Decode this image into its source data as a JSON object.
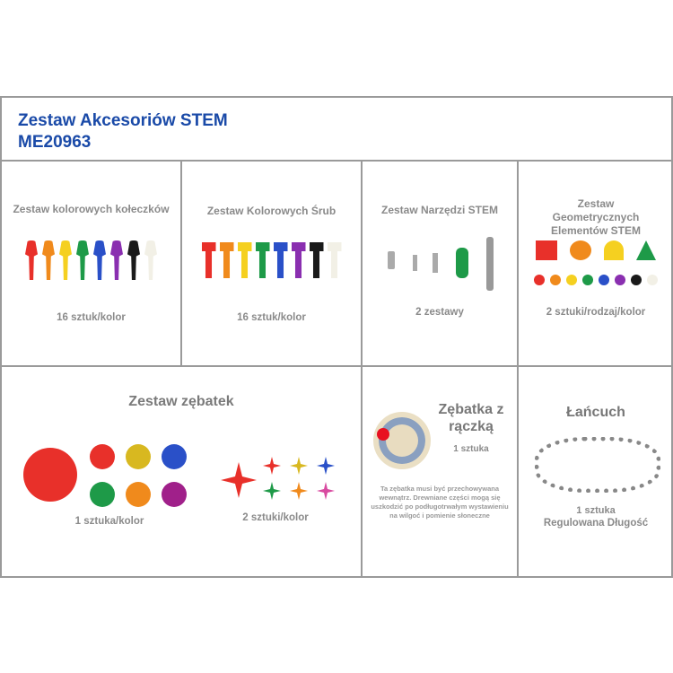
{
  "header": {
    "title": "Zestaw Akcesoriów STEM",
    "code": "ME20963"
  },
  "colors": {
    "title": "#1a4aa8",
    "text": "#8a8a8a",
    "items": [
      "#e8302a",
      "#f08a1c",
      "#f5d020",
      "#1e9a48",
      "#2a50c8",
      "#8a2fb0",
      "#1a1a1a",
      "#f2f0e6"
    ]
  },
  "cells": [
    {
      "title": "Zestaw kolorowych kołeczków",
      "caption": "16 sztuk/kolor"
    },
    {
      "title": "Zestaw Kolorowych Śrub",
      "caption": "16 sztuk/kolor"
    },
    {
      "title": "Zestaw Narzędzi STEM",
      "caption": "2 zestawy"
    },
    {
      "title": "Zestaw Geometrycznych Elementów STEM",
      "caption": "2 sztuki/rodzaj/kolor"
    },
    {
      "title": "Zestaw zębatek",
      "caption_left": "1 sztuka/kolor",
      "caption_right": "2 sztuki/kolor"
    },
    {
      "title": "Zębatka z rączką",
      "caption": "1 sztuka",
      "note": "Ta zębatka musi być przechowywana wewnątrz. Drewniane części mogą się uszkodzić po podługotrwałym wystawieniu na wilgoć i pomienie słoneczne"
    },
    {
      "title": "Łańcuch",
      "caption": "1 sztuka",
      "caption2": "Regulowana Długość"
    }
  ]
}
